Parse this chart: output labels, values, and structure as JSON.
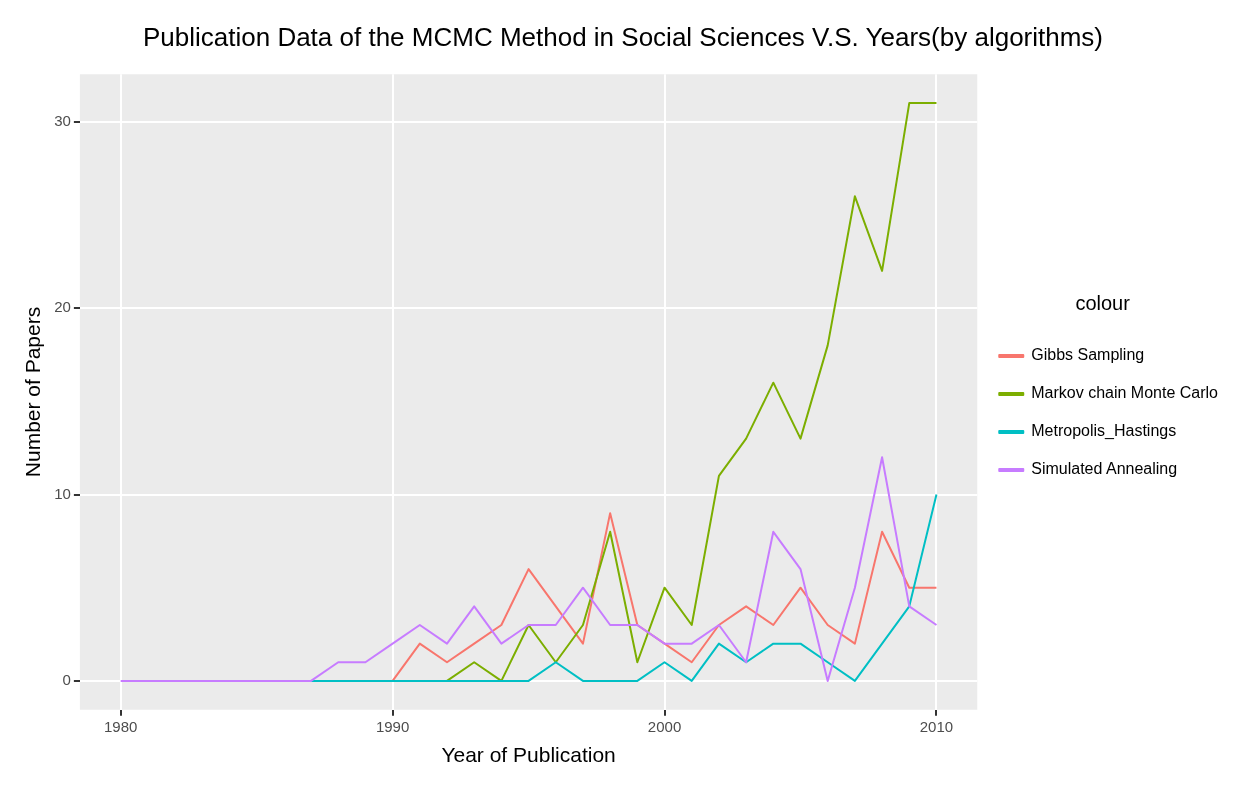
{
  "chart_data": {
    "type": "line",
    "title": "Publication Data of the MCMC Method in Social Sciences V.S. Years(by algorithms)",
    "xlabel": "Year of Publication",
    "ylabel": "Number of Papers",
    "legend_title": "colour",
    "legend": "right",
    "grid": true,
    "x": [
      1980,
      1981,
      1982,
      1983,
      1984,
      1985,
      1986,
      1987,
      1988,
      1989,
      1990,
      1991,
      1992,
      1993,
      1994,
      1995,
      1996,
      1997,
      1998,
      1999,
      2000,
      2001,
      2002,
      2003,
      2004,
      2005,
      2006,
      2007,
      2008,
      2009,
      2010
    ],
    "xlim": [
      1978.5,
      2011.5
    ],
    "xticks": [
      1980,
      1990,
      2000,
      2010
    ],
    "ylim": [
      -1.55,
      32.55
    ],
    "yticks": [
      0,
      10,
      20,
      30
    ],
    "series": [
      {
        "name": "Gibbs Sampling",
        "color": "#f8766d",
        "values": [
          null,
          null,
          null,
          null,
          null,
          null,
          null,
          null,
          null,
          null,
          0,
          2,
          1,
          2,
          3,
          6,
          4,
          2,
          9,
          3,
          2,
          1,
          3,
          4,
          3,
          5,
          3,
          2,
          8,
          5,
          5
        ]
      },
      {
        "name": "Markov chain Monte Carlo",
        "color": "#7cae00",
        "values": [
          null,
          null,
          null,
          null,
          null,
          null,
          null,
          null,
          null,
          null,
          null,
          null,
          0,
          1,
          0,
          3,
          1,
          3,
          8,
          1,
          5,
          3,
          11,
          13,
          16,
          13,
          18,
          26,
          22,
          31,
          31
        ]
      },
      {
        "name": "Metropolis_Hastings",
        "color": "#00bfc4",
        "values": [
          null,
          null,
          null,
          null,
          null,
          null,
          null,
          0,
          0,
          0,
          0,
          0,
          0,
          0,
          0,
          0,
          1,
          0,
          0,
          0,
          1,
          0,
          2,
          1,
          2,
          2,
          1,
          0,
          2,
          4,
          10
        ]
      },
      {
        "name": "Simulated Annealing",
        "color": "#c77cff",
        "values": [
          0,
          0,
          0,
          0,
          0,
          0,
          0,
          0,
          1,
          1,
          2,
          3,
          2,
          4,
          2,
          3,
          3,
          5,
          3,
          3,
          2,
          2,
          3,
          1,
          8,
          6,
          0,
          5,
          12,
          4,
          3
        ]
      }
    ]
  }
}
